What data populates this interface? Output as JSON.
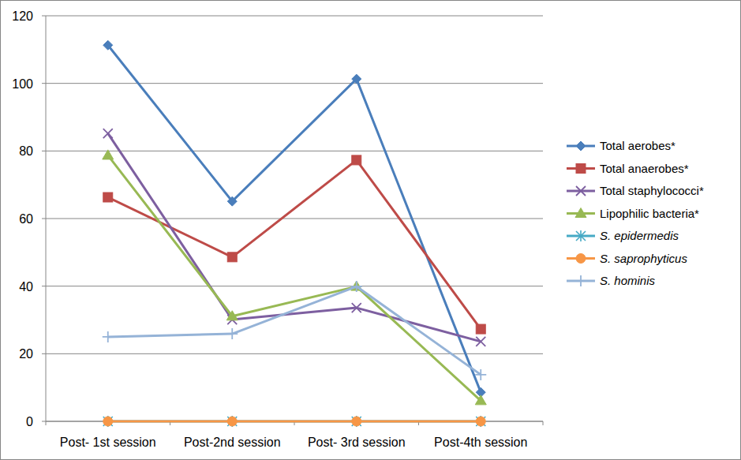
{
  "chart_data": {
    "type": "line",
    "categories": [
      "Post- 1st session",
      "Post-2nd session",
      "Post- 3rd session",
      "Post-4th session"
    ],
    "ylim": [
      0,
      120
    ],
    "yticks": [
      0,
      20,
      40,
      60,
      80,
      100,
      120
    ],
    "grid": true,
    "legend": "right",
    "series": [
      {
        "name": "Total aerobes*",
        "color": "#4a7ebb",
        "marker": "diamond",
        "values": [
          111.3,
          65.1,
          101.3,
          8.6
        ]
      },
      {
        "name": "Total anaerobes*",
        "color": "#be4b48",
        "marker": "square",
        "values": [
          66.3,
          48.6,
          77.3,
          27.3
        ]
      },
      {
        "name": "Total staphylococci*",
        "color": "#7d5fa0",
        "marker": "x",
        "values": [
          85.2,
          30.1,
          33.6,
          23.6
        ]
      },
      {
        "name": "Lipophilic bacteria*",
        "color": "#98b954",
        "marker": "triangle",
        "values": [
          78.7,
          31.1,
          39.9,
          6.1
        ]
      },
      {
        "name": "S. epidermedis",
        "color": "#46aac5",
        "marker": "star",
        "values": [
          0,
          0,
          0,
          0
        ]
      },
      {
        "name": "S. saprophyticus",
        "color": "#f79646",
        "marker": "circle",
        "values": [
          0,
          0,
          0,
          0
        ]
      },
      {
        "name": "S. hominis",
        "color": "#95b3d7",
        "marker": "plus",
        "values": [
          25.0,
          25.9,
          39.9,
          13.8
        ]
      }
    ]
  }
}
